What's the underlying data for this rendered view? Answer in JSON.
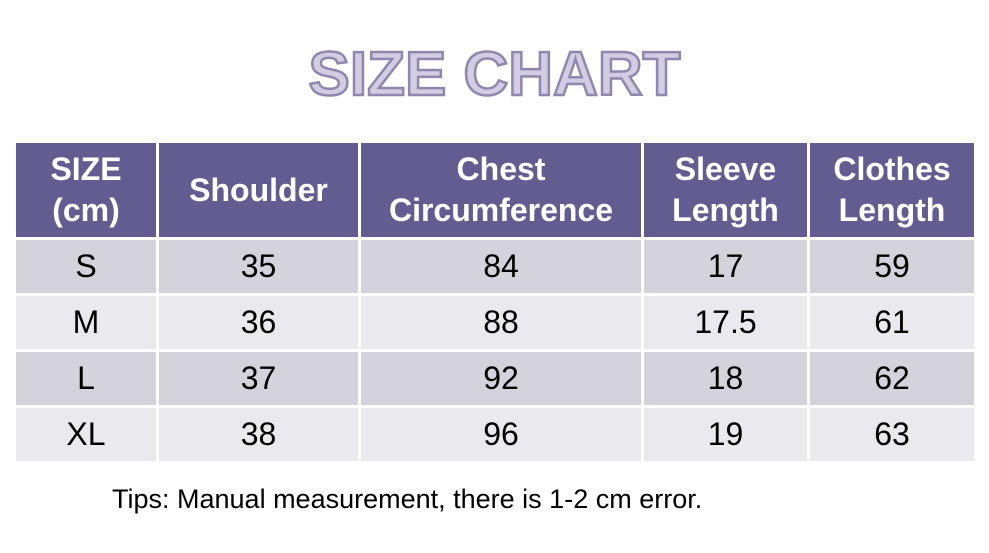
{
  "title": "SIZE CHART",
  "headers": [
    "SIZE\n(cm)",
    "Shoulder",
    "Chest\nCircumference",
    "Sleeve\nLength",
    "Clothes\nLength"
  ],
  "rows": [
    [
      "S",
      "35",
      "84",
      "17",
      "59"
    ],
    [
      "M",
      "36",
      "88",
      "17.5",
      "61"
    ],
    [
      "L",
      "37",
      "92",
      "18",
      "62"
    ],
    [
      "XL",
      "38",
      "96",
      "19",
      "63"
    ]
  ],
  "tips": "Tips: Manual measurement, there is 1-2 cm error.",
  "colors": {
    "header_bg": "#625c90",
    "header_text": "#ffffff",
    "row_odd_bg": "#d4d3dc",
    "row_even_bg": "#e9e9ee",
    "title_fill": "#d3cde3",
    "title_outline": "#8f87ae"
  }
}
